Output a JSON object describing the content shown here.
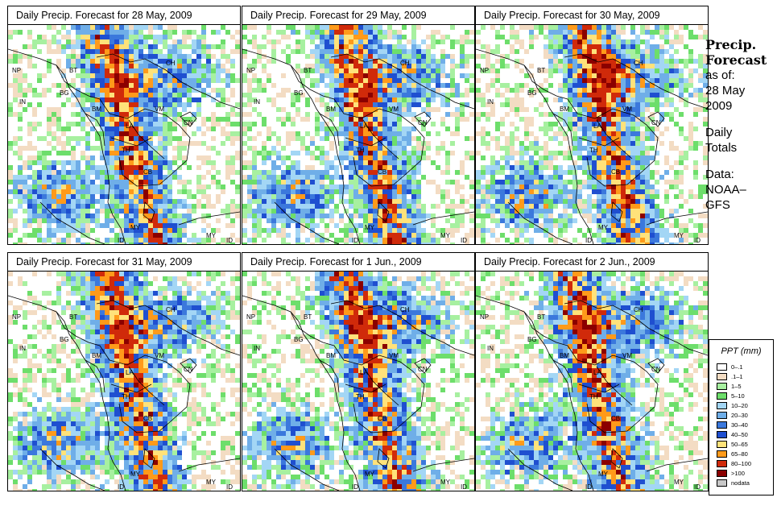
{
  "panels": [
    {
      "title": "Daily Precip. Forecast for  28 May, 2009",
      "seed": 3
    },
    {
      "title": "Daily Precip. Forecast for  29 May, 2009",
      "seed": 11
    },
    {
      "title": "Daily Precip. Forecast for  30 May, 2009",
      "seed": 19
    },
    {
      "title": "Daily Precip. Forecast for  31 May, 2009",
      "seed": 27
    },
    {
      "title": "Daily Precip. Forecast for  1 Jun., 2009",
      "seed": 35
    },
    {
      "title": "Daily Precip. Forecast for  2 Jun., 2009",
      "seed": 43
    }
  ],
  "map_labels": {
    "np": "NP",
    "bt": "BT",
    "ch": "CH",
    "in": "IN",
    "bg": "BG",
    "bm": "BM",
    "vm": "VM",
    "cn": "CN",
    "la": "LA",
    "th": "TH",
    "cb": "CB",
    "my": "MY",
    "id": "ID"
  },
  "sidebar": {
    "title_line1": "Precip.",
    "title_line2": "Forecast",
    "asof": "as of:",
    "date_line1": "28 May",
    "date_line2": "2009",
    "daily_line1": "Daily",
    "daily_line2": "Totals",
    "data_line1": "Data:",
    "data_line2": "NOAA–",
    "data_line3": "GFS"
  },
  "legend": {
    "title": "PPT (mm)",
    "items": [
      {
        "label": "0–.1",
        "color": "#fdfdfd"
      },
      {
        "label": ".1–1",
        "color": "#f3dcc3"
      },
      {
        "label": "1–5",
        "color": "#a7f0a0"
      },
      {
        "label": "5–10",
        "color": "#6dde6b"
      },
      {
        "label": "10–20",
        "color": "#a3d6f5"
      },
      {
        "label": "20–30",
        "color": "#6faee8"
      },
      {
        "label": "30–40",
        "color": "#3b78dc"
      },
      {
        "label": "40–50",
        "color": "#1f4fd0"
      },
      {
        "label": "50–65",
        "color": "#ffe27a"
      },
      {
        "label": "65–80",
        "color": "#ff9a1a"
      },
      {
        "label": "80–100",
        "color": "#d02a0a"
      },
      {
        "label": ">100",
        "color": "#8b0000"
      },
      {
        "label": "nodata",
        "color": "#c8c8c8"
      }
    ]
  }
}
